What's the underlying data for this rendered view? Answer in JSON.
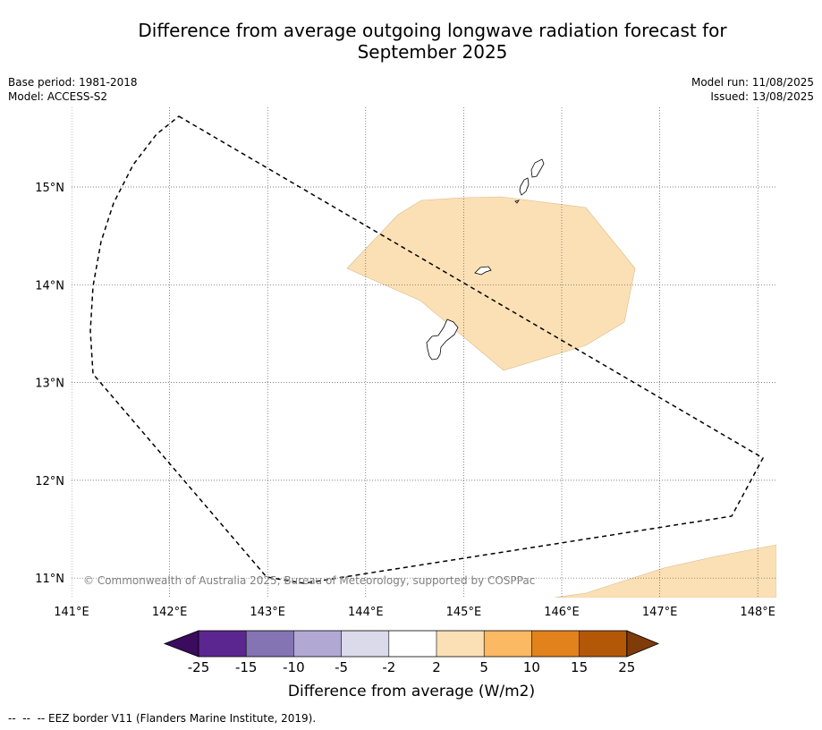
{
  "title_line1": "Difference from average outgoing longwave radiation forecast for",
  "title_line2": "September 2025",
  "meta_left": {
    "base_period": "Base period: 1981-2018",
    "model": "Model: ACCESS-S2"
  },
  "meta_right": {
    "model_run": "Model run: 11/08/2025",
    "issued": "Issued: 13/08/2025"
  },
  "map": {
    "lon_range": [
      141,
      148.2
    ],
    "lat_range": [
      10.8,
      15.8
    ],
    "lon_ticks": [
      {
        "v": 141,
        "label": "141°E"
      },
      {
        "v": 142,
        "label": "142°E"
      },
      {
        "v": 143,
        "label": "143°E"
      },
      {
        "v": 144,
        "label": "144°E"
      },
      {
        "v": 145,
        "label": "145°E"
      },
      {
        "v": 146,
        "label": "146°E"
      },
      {
        "v": 147,
        "label": "147°E"
      },
      {
        "v": 148,
        "label": "148°E"
      }
    ],
    "lat_ticks": [
      {
        "v": 15,
        "label": "15°N"
      },
      {
        "v": 14,
        "label": "14°N"
      },
      {
        "v": 13,
        "label": "13°N"
      },
      {
        "v": 12,
        "label": "12°N"
      },
      {
        "v": 11,
        "label": "11°N"
      }
    ],
    "anomaly_fill": "#fce0b5",
    "anomaly_category": "2 to 5",
    "copyright": "© Commonwealth of Australia 2025, Bureau of Meteorology, supported by COSPPac"
  },
  "colorbar": {
    "colors": [
      "#3b0b5e",
      "#5c2690",
      "#8474b3",
      "#b1a9d4",
      "#dadaeb",
      "#ffffff",
      "#fce0b5",
      "#fcb963",
      "#e2821c",
      "#b35806",
      "#7f3b08"
    ],
    "tick_labels": [
      "-25",
      "-15",
      "-10",
      "-5",
      "-2",
      "2",
      "5",
      "10",
      "15",
      "25"
    ],
    "label": "Difference from average (W/m2)"
  },
  "footnote": "--  --  -- EEZ border V11 (Flanders Marine Institute, 2019)."
}
